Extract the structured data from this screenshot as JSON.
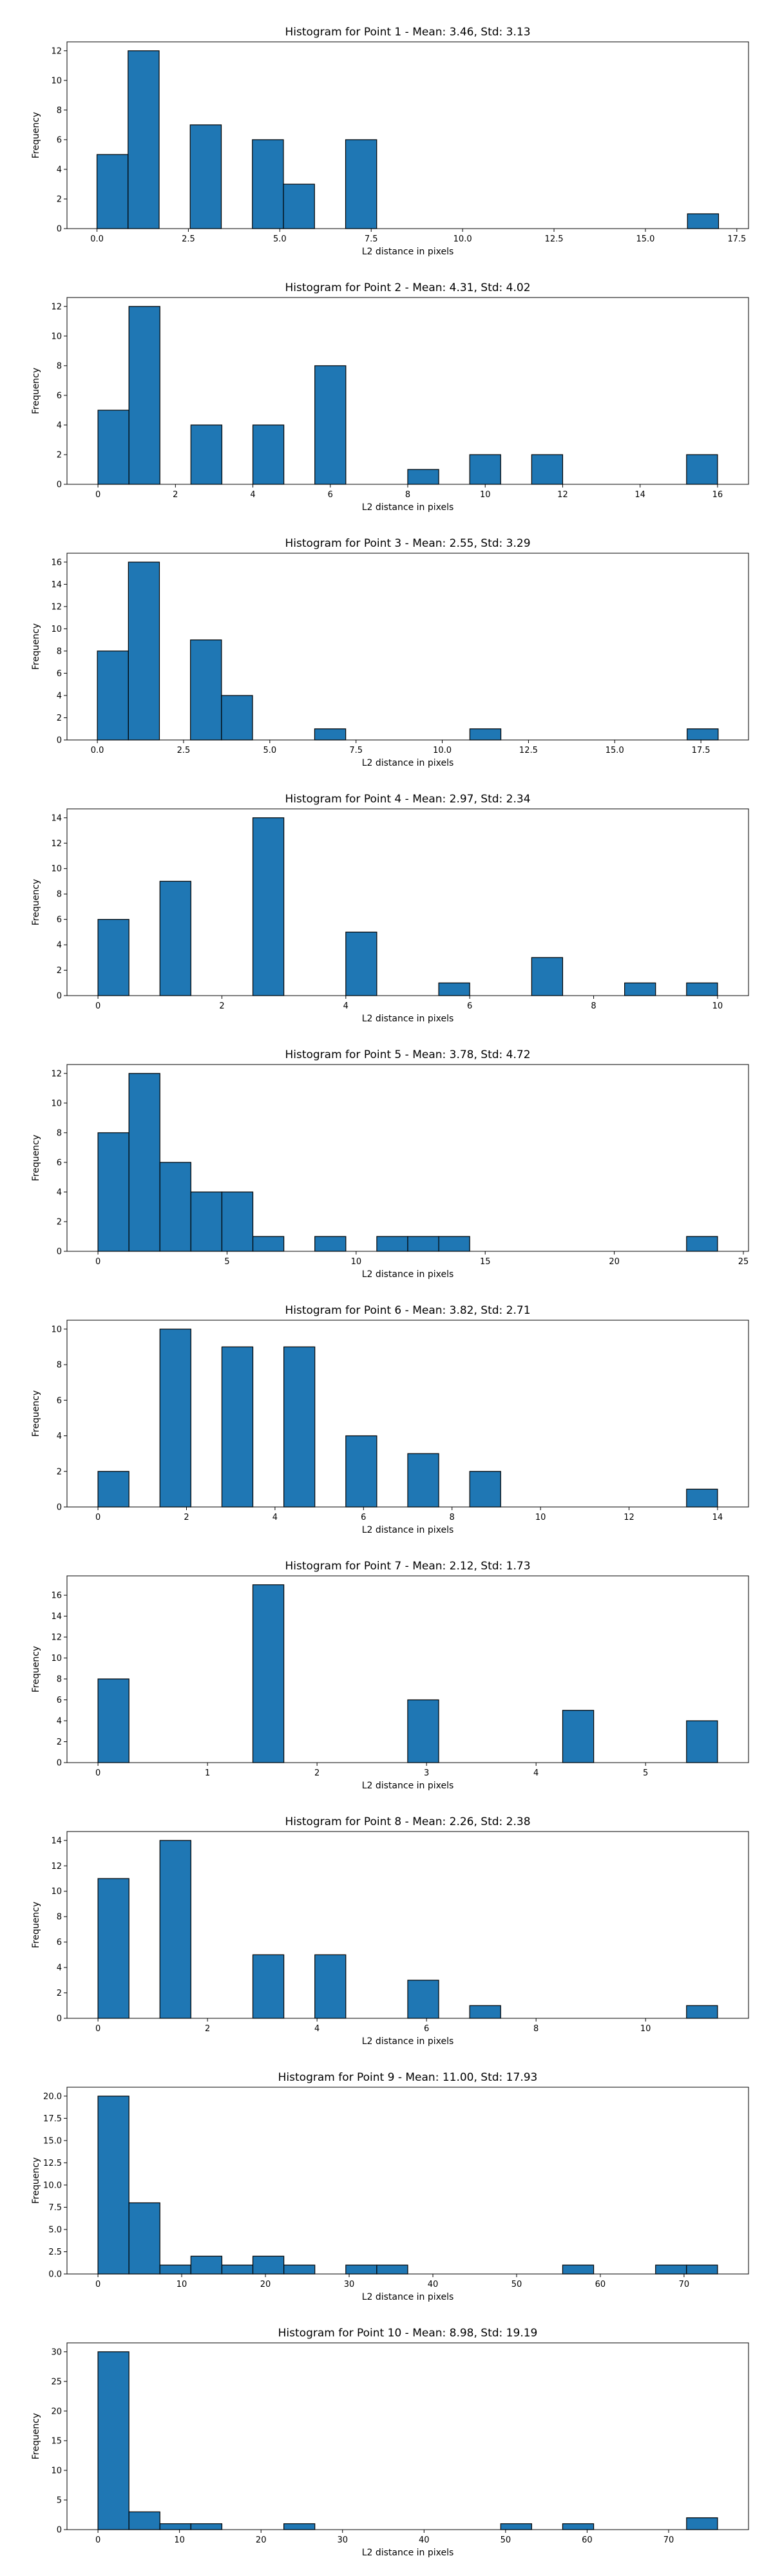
{
  "chart_data": [
    {
      "type": "bar",
      "title": "Histogram for Point 1 - Mean: 3.46, Std: 3.13",
      "xlabel": "L2 distance in pixels",
      "ylabel": "Frequency",
      "xlim": [
        -0.82,
        17.82
      ],
      "ylim": [
        0,
        12.6
      ],
      "xticks": [
        0.0,
        2.5,
        5.0,
        7.5,
        10.0,
        12.5,
        15.0,
        17.5
      ],
      "xtick_labels": [
        "0.0",
        "2.5",
        "5.0",
        "7.5",
        "10.0",
        "12.5",
        "15.0",
        "17.5"
      ],
      "yticks": [
        0,
        2,
        4,
        6,
        8,
        10,
        12
      ],
      "ytick_labels": [
        "0",
        "2",
        "4",
        "6",
        "8",
        "10",
        "12"
      ],
      "bins": [
        {
          "x0": 0.0,
          "x1": 0.85,
          "count": 5
        },
        {
          "x0": 0.85,
          "x1": 1.7,
          "count": 12
        },
        {
          "x0": 2.55,
          "x1": 3.4,
          "count": 7
        },
        {
          "x0": 4.25,
          "x1": 5.1,
          "count": 6
        },
        {
          "x0": 5.1,
          "x1": 5.95,
          "count": 3
        },
        {
          "x0": 6.8,
          "x1": 7.65,
          "count": 6
        },
        {
          "x0": 16.15,
          "x1": 17.0,
          "count": 1
        }
      ]
    },
    {
      "type": "bar",
      "title": "Histogram for Point 2 - Mean: 4.31, Std: 4.02",
      "xlabel": "L2 distance in pixels",
      "ylabel": "Frequency",
      "xlim": [
        -0.8,
        16.8
      ],
      "ylim": [
        0,
        12.6
      ],
      "xticks": [
        0,
        2,
        4,
        6,
        8,
        10,
        12,
        14,
        16
      ],
      "xtick_labels": [
        "0",
        "2",
        "4",
        "6",
        "8",
        "10",
        "12",
        "14",
        "16"
      ],
      "yticks": [
        0,
        2,
        4,
        6,
        8,
        10,
        12
      ],
      "ytick_labels": [
        "0",
        "2",
        "4",
        "6",
        "8",
        "10",
        "12"
      ],
      "bins": [
        {
          "x0": 0.0,
          "x1": 0.8,
          "count": 5
        },
        {
          "x0": 0.8,
          "x1": 1.6,
          "count": 12
        },
        {
          "x0": 2.4,
          "x1": 3.2,
          "count": 4
        },
        {
          "x0": 4.0,
          "x1": 4.8,
          "count": 4
        },
        {
          "x0": 5.6,
          "x1": 6.4,
          "count": 8
        },
        {
          "x0": 8.0,
          "x1": 8.8,
          "count": 1
        },
        {
          "x0": 9.6,
          "x1": 10.4,
          "count": 2
        },
        {
          "x0": 11.2,
          "x1": 12.0,
          "count": 2
        },
        {
          "x0": 15.2,
          "x1": 16.0,
          "count": 2
        }
      ]
    },
    {
      "type": "bar",
      "title": "Histogram for Point 3 - Mean: 2.55, Std: 3.29",
      "xlabel": "L2 distance in pixels",
      "ylabel": "Frequency",
      "xlim": [
        -0.88,
        18.88
      ],
      "ylim": [
        0,
        16.8
      ],
      "xticks": [
        0.0,
        2.5,
        5.0,
        7.5,
        10.0,
        12.5,
        15.0,
        17.5
      ],
      "xtick_labels": [
        "0.0",
        "2.5",
        "5.0",
        "7.5",
        "10.0",
        "12.5",
        "15.0",
        "17.5"
      ],
      "yticks": [
        0,
        2,
        4,
        6,
        8,
        10,
        12,
        14,
        16
      ],
      "ytick_labels": [
        "0",
        "2",
        "4",
        "6",
        "8",
        "10",
        "12",
        "14",
        "16"
      ],
      "bins": [
        {
          "x0": 0.0,
          "x1": 0.9,
          "count": 8
        },
        {
          "x0": 0.9,
          "x1": 1.8,
          "count": 16
        },
        {
          "x0": 2.7,
          "x1": 3.6,
          "count": 9
        },
        {
          "x0": 3.6,
          "x1": 4.5,
          "count": 4
        },
        {
          "x0": 6.3,
          "x1": 7.2,
          "count": 1
        },
        {
          "x0": 10.8,
          "x1": 11.7,
          "count": 1
        },
        {
          "x0": 17.1,
          "x1": 18.0,
          "count": 1
        }
      ]
    },
    {
      "type": "bar",
      "title": "Histogram for Point 4 - Mean: 2.97, Std: 2.34",
      "xlabel": "L2 distance in pixels",
      "ylabel": "Frequency",
      "xlim": [
        -0.5,
        10.5
      ],
      "ylim": [
        0,
        14.7
      ],
      "xticks": [
        0,
        2,
        4,
        6,
        8,
        10
      ],
      "xtick_labels": [
        "0",
        "2",
        "4",
        "6",
        "8",
        "10"
      ],
      "yticks": [
        0,
        2,
        4,
        6,
        8,
        10,
        12,
        14
      ],
      "ytick_labels": [
        "0",
        "2",
        "4",
        "6",
        "8",
        "10",
        "12",
        "14"
      ],
      "bins": [
        {
          "x0": 0.0,
          "x1": 0.5,
          "count": 6
        },
        {
          "x0": 1.0,
          "x1": 1.5,
          "count": 9
        },
        {
          "x0": 2.5,
          "x1": 3.0,
          "count": 14
        },
        {
          "x0": 4.0,
          "x1": 4.5,
          "count": 5
        },
        {
          "x0": 5.5,
          "x1": 6.0,
          "count": 1
        },
        {
          "x0": 7.0,
          "x1": 7.5,
          "count": 3
        },
        {
          "x0": 8.5,
          "x1": 9.0,
          "count": 1
        },
        {
          "x0": 9.5,
          "x1": 10.0,
          "count": 1
        }
      ]
    },
    {
      "type": "bar",
      "title": "Histogram for Point 5 - Mean: 3.78, Std: 4.72",
      "xlabel": "L2 distance in pixels",
      "ylabel": "Frequency",
      "xlim": [
        -1.2,
        25.2
      ],
      "ylim": [
        0,
        12.6
      ],
      "xticks": [
        0,
        5,
        10,
        15,
        20,
        25
      ],
      "xtick_labels": [
        "0",
        "5",
        "10",
        "15",
        "20",
        "25"
      ],
      "yticks": [
        0,
        2,
        4,
        6,
        8,
        10,
        12
      ],
      "ytick_labels": [
        "0",
        "2",
        "4",
        "6",
        "8",
        "10",
        "12"
      ],
      "bins": [
        {
          "x0": 0.0,
          "x1": 1.2,
          "count": 8
        },
        {
          "x0": 1.2,
          "x1": 2.4,
          "count": 12
        },
        {
          "x0": 2.4,
          "x1": 3.6,
          "count": 6
        },
        {
          "x0": 3.6,
          "x1": 4.8,
          "count": 4
        },
        {
          "x0": 4.8,
          "x1": 6.0,
          "count": 4
        },
        {
          "x0": 6.0,
          "x1": 7.2,
          "count": 1
        },
        {
          "x0": 8.4,
          "x1": 9.6,
          "count": 1
        },
        {
          "x0": 10.8,
          "x1": 12.0,
          "count": 1
        },
        {
          "x0": 12.0,
          "x1": 13.2,
          "count": 1
        },
        {
          "x0": 13.2,
          "x1": 14.4,
          "count": 1
        },
        {
          "x0": 22.8,
          "x1": 24.0,
          "count": 1
        }
      ]
    },
    {
      "type": "bar",
      "title": "Histogram for Point 6 - Mean: 3.82, Std: 2.71",
      "xlabel": "L2 distance in pixels",
      "ylabel": "Frequency",
      "xlim": [
        -0.7,
        14.7
      ],
      "ylim": [
        0,
        10.5
      ],
      "xticks": [
        0,
        2,
        4,
        6,
        8,
        10,
        12,
        14
      ],
      "xtick_labels": [
        "0",
        "2",
        "4",
        "6",
        "8",
        "10",
        "12",
        "14"
      ],
      "yticks": [
        0,
        2,
        4,
        6,
        8,
        10
      ],
      "ytick_labels": [
        "0",
        "2",
        "4",
        "6",
        "8",
        "10"
      ],
      "bins": [
        {
          "x0": 0.0,
          "x1": 0.7,
          "count": 2
        },
        {
          "x0": 1.4,
          "x1": 2.1,
          "count": 10
        },
        {
          "x0": 2.8,
          "x1": 3.5,
          "count": 9
        },
        {
          "x0": 4.2,
          "x1": 4.9,
          "count": 9
        },
        {
          "x0": 5.6,
          "x1": 6.3,
          "count": 4
        },
        {
          "x0": 7.0,
          "x1": 7.7,
          "count": 3
        },
        {
          "x0": 8.4,
          "x1": 9.1,
          "count": 2
        },
        {
          "x0": 13.3,
          "x1": 14.0,
          "count": 1
        }
      ]
    },
    {
      "type": "bar",
      "title": "Histogram for Point 7 - Mean: 2.12, Std: 1.73",
      "xlabel": "L2 distance in pixels",
      "ylabel": "Frequency",
      "xlim": [
        -0.283,
        5.94
      ],
      "ylim": [
        0,
        17.85
      ],
      "xticks": [
        0,
        1,
        2,
        3,
        4,
        5
      ],
      "xtick_labels": [
        "0",
        "1",
        "2",
        "3",
        "4",
        "5"
      ],
      "yticks": [
        0,
        2,
        4,
        6,
        8,
        10,
        12,
        14,
        16
      ],
      "ytick_labels": [
        "0",
        "2",
        "4",
        "6",
        "8",
        "10",
        "12",
        "14",
        "16"
      ],
      "bins": [
        {
          "x0": 0.0,
          "x1": 0.283,
          "count": 8
        },
        {
          "x0": 1.414,
          "x1": 1.697,
          "count": 17
        },
        {
          "x0": 2.828,
          "x1": 3.111,
          "count": 6
        },
        {
          "x0": 4.243,
          "x1": 4.526,
          "count": 5
        },
        {
          "x0": 5.374,
          "x1": 5.657,
          "count": 4
        }
      ]
    },
    {
      "type": "bar",
      "title": "Histogram for Point 8 - Mean: 2.26, Std: 2.38",
      "xlabel": "L2 distance in pixels",
      "ylabel": "Frequency",
      "xlim": [
        -0.566,
        11.88
      ],
      "ylim": [
        0,
        14.7
      ],
      "xticks": [
        0,
        2,
        4,
        6,
        8,
        10
      ],
      "xtick_labels": [
        "0",
        "2",
        "4",
        "6",
        "8",
        "10"
      ],
      "yticks": [
        0,
        2,
        4,
        6,
        8,
        10,
        12,
        14
      ],
      "ytick_labels": [
        "0",
        "2",
        "4",
        "6",
        "8",
        "10",
        "12",
        "14"
      ],
      "bins": [
        {
          "x0": 0.0,
          "x1": 0.566,
          "count": 11
        },
        {
          "x0": 1.131,
          "x1": 1.697,
          "count": 14
        },
        {
          "x0": 2.828,
          "x1": 3.394,
          "count": 5
        },
        {
          "x0": 3.96,
          "x1": 4.525,
          "count": 5
        },
        {
          "x0": 5.657,
          "x1": 6.222,
          "count": 3
        },
        {
          "x0": 6.788,
          "x1": 7.354,
          "count": 1
        },
        {
          "x0": 10.748,
          "x1": 11.314,
          "count": 1
        }
      ]
    },
    {
      "type": "bar",
      "title": "Histogram for Point 9 - Mean: 11.00, Std: 17.93",
      "xlabel": "L2 distance in pixels",
      "ylabel": "Frequency",
      "xlim": [
        -3.7,
        77.7
      ],
      "ylim": [
        0,
        21
      ],
      "xticks": [
        0,
        10,
        20,
        30,
        40,
        50,
        60,
        70
      ],
      "xtick_labels": [
        "0",
        "10",
        "20",
        "30",
        "40",
        "50",
        "60",
        "70"
      ],
      "yticks": [
        0,
        2.5,
        5,
        7.5,
        10,
        12.5,
        15,
        17.5,
        20
      ],
      "ytick_labels": [
        "0.0",
        "2.5",
        "5.0",
        "7.5",
        "10.0",
        "12.5",
        "15.0",
        "17.5",
        "20.0"
      ],
      "bins": [
        {
          "x0": 0.0,
          "x1": 3.7,
          "count": 20
        },
        {
          "x0": 3.7,
          "x1": 7.4,
          "count": 8
        },
        {
          "x0": 7.4,
          "x1": 11.1,
          "count": 1
        },
        {
          "x0": 11.1,
          "x1": 14.8,
          "count": 2
        },
        {
          "x0": 14.8,
          "x1": 18.5,
          "count": 1
        },
        {
          "x0": 18.5,
          "x1": 22.2,
          "count": 2
        },
        {
          "x0": 22.2,
          "x1": 25.9,
          "count": 1
        },
        {
          "x0": 29.6,
          "x1": 33.3,
          "count": 1
        },
        {
          "x0": 33.3,
          "x1": 37.0,
          "count": 1
        },
        {
          "x0": 55.5,
          "x1": 59.2,
          "count": 1
        },
        {
          "x0": 66.6,
          "x1": 70.3,
          "count": 1
        },
        {
          "x0": 70.3,
          "x1": 74.0,
          "count": 1
        }
      ]
    },
    {
      "type": "bar",
      "title": "Histogram for Point 10 - Mean: 8.98, Std: 19.19",
      "xlabel": "L2 distance in pixels",
      "ylabel": "Frequency",
      "xlim": [
        -3.8,
        79.8
      ],
      "ylim": [
        0,
        31.5
      ],
      "xticks": [
        0,
        10,
        20,
        30,
        40,
        50,
        60,
        70
      ],
      "xtick_labels": [
        "0",
        "10",
        "20",
        "30",
        "40",
        "50",
        "60",
        "70"
      ],
      "yticks": [
        0,
        5,
        10,
        15,
        20,
        25,
        30
      ],
      "ytick_labels": [
        "0",
        "5",
        "10",
        "15",
        "20",
        "25",
        "30"
      ],
      "bins": [
        {
          "x0": 0.0,
          "x1": 3.8,
          "count": 30
        },
        {
          "x0": 3.8,
          "x1": 7.6,
          "count": 3
        },
        {
          "x0": 7.6,
          "x1": 11.4,
          "count": 1
        },
        {
          "x0": 11.4,
          "x1": 15.2,
          "count": 1
        },
        {
          "x0": 22.8,
          "x1": 26.6,
          "count": 1
        },
        {
          "x0": 49.4,
          "x1": 53.2,
          "count": 1
        },
        {
          "x0": 57.0,
          "x1": 60.8,
          "count": 1
        },
        {
          "x0": 72.2,
          "x1": 76.0,
          "count": 2
        }
      ]
    }
  ]
}
